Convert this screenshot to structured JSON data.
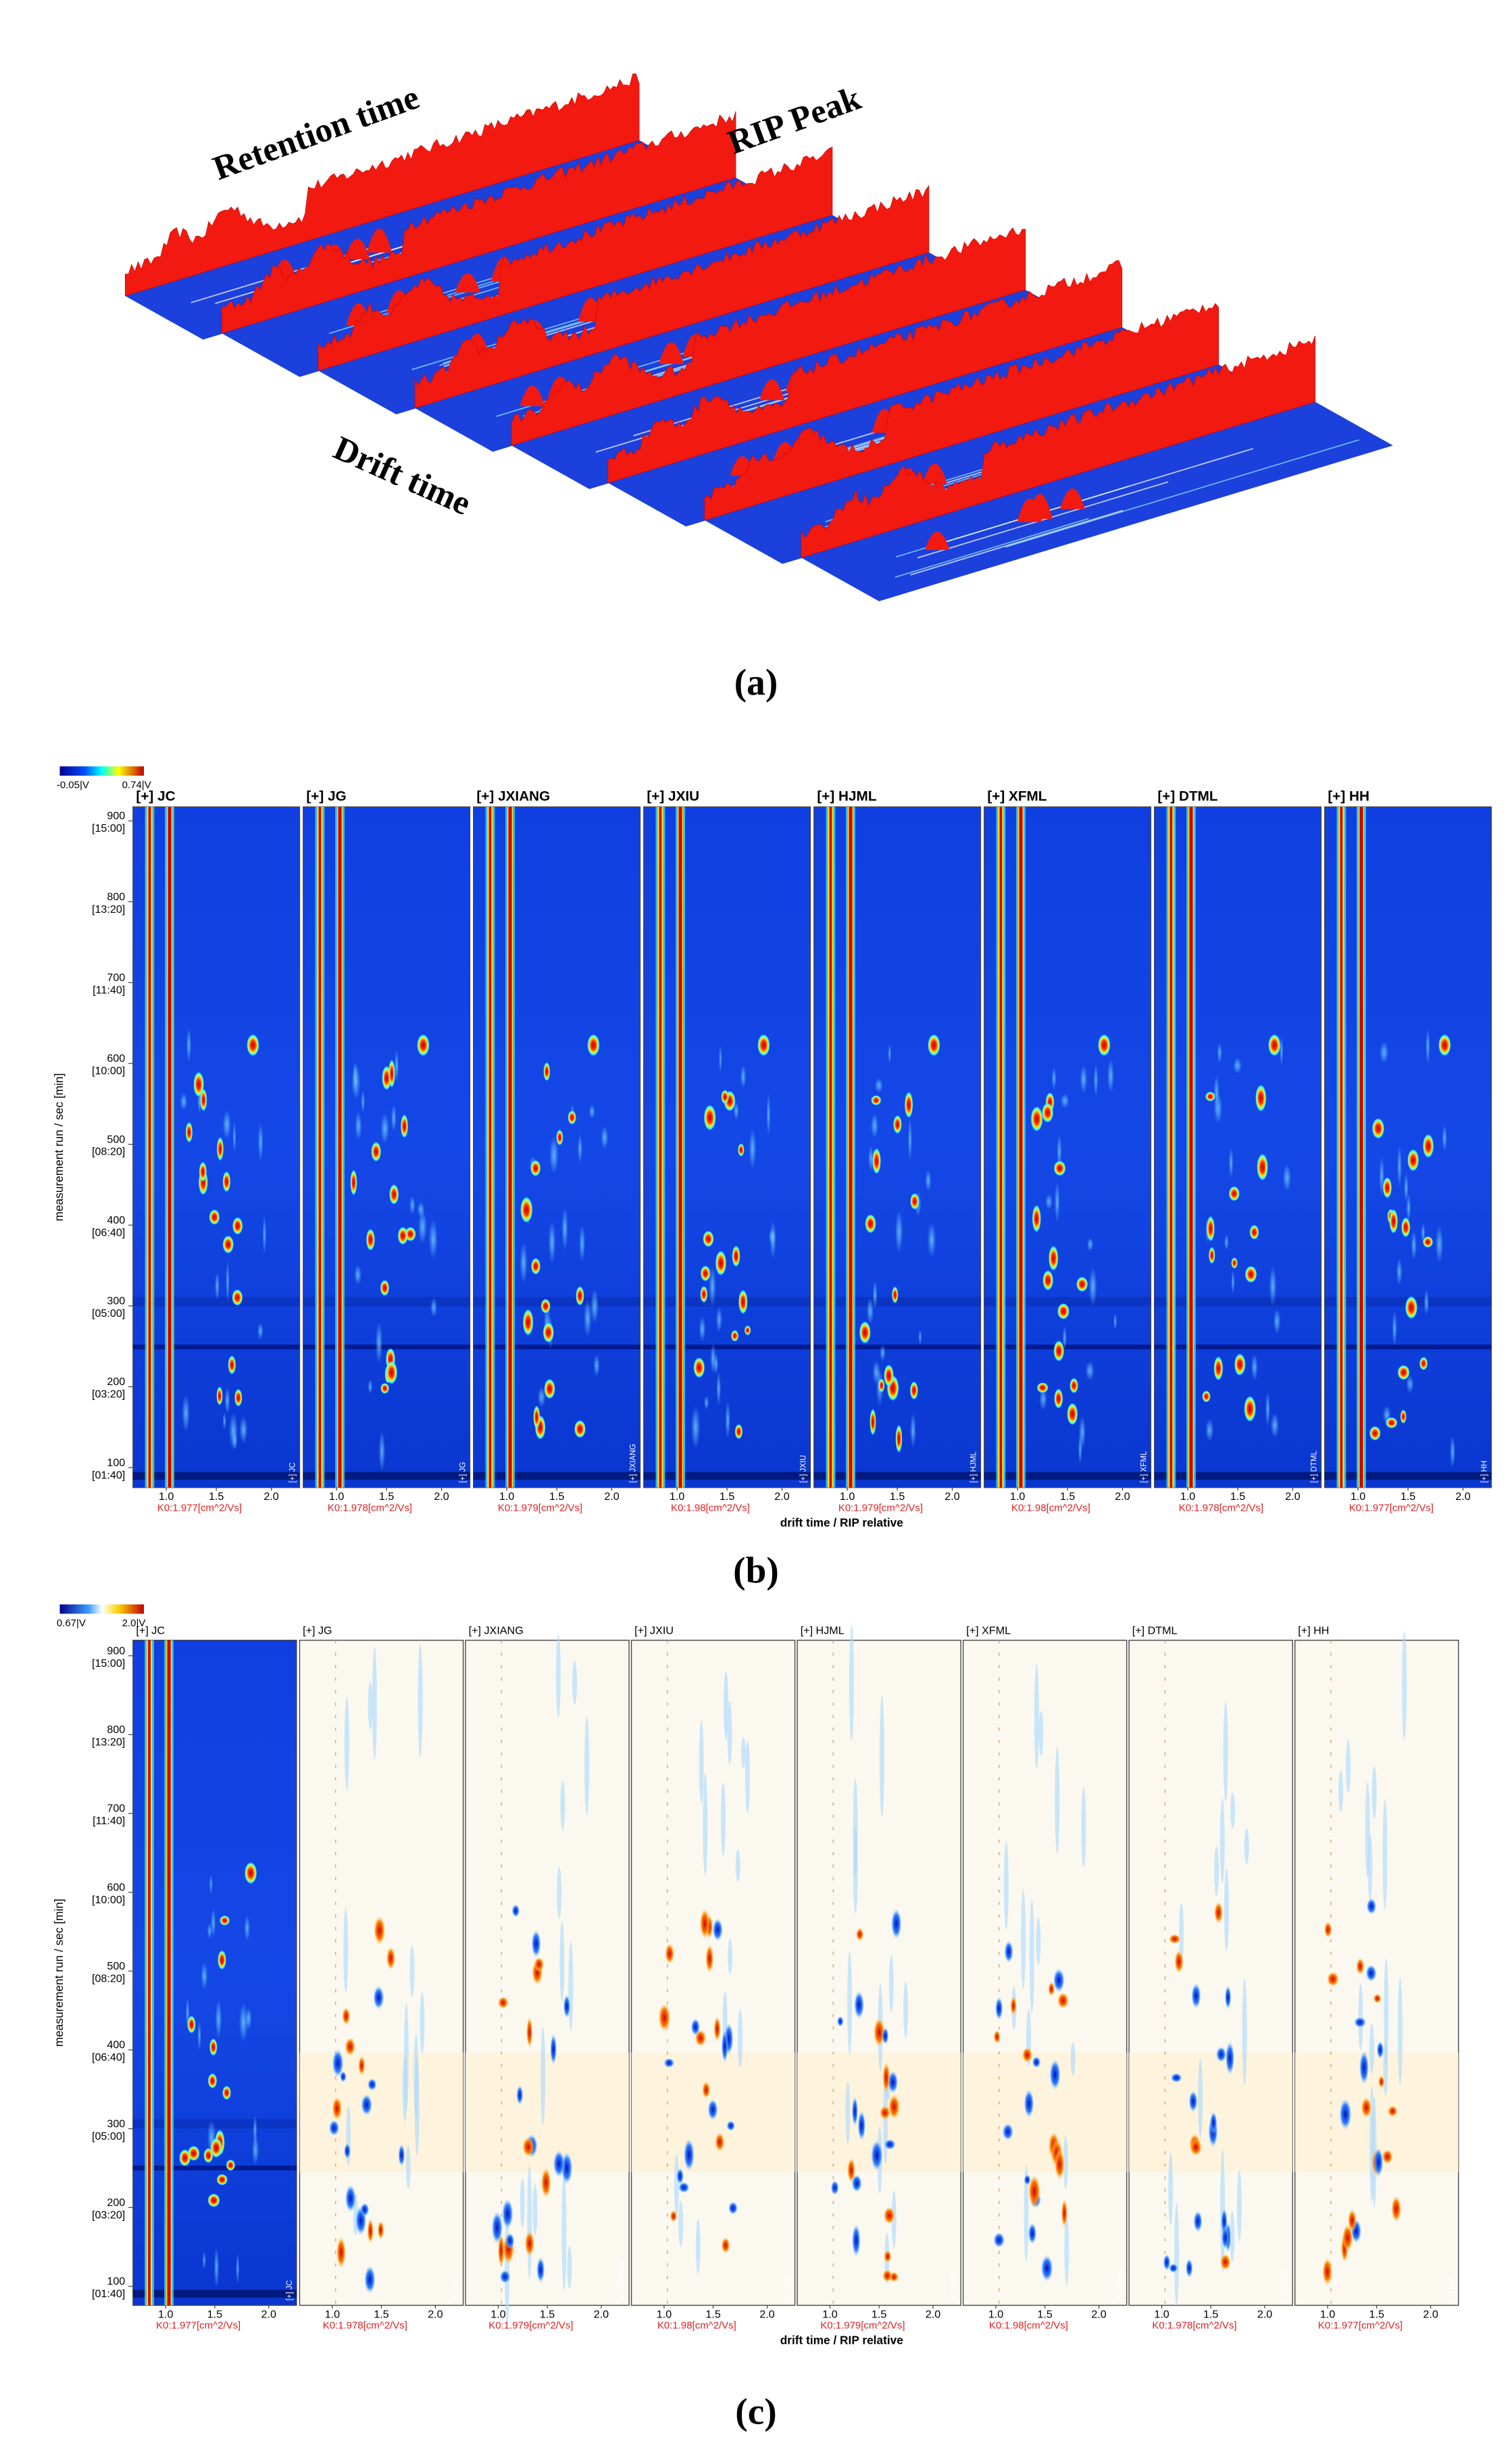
{
  "panel_a": {
    "labels": [
      "Retention time",
      "RIP Peak",
      "Drift time"
    ],
    "caption": "(a)"
  },
  "panel_b": {
    "colorbar_labels": [
      "-0.05|V",
      "0.74|V"
    ],
    "samples": [
      "[+] JC",
      "[+] JG",
      "[+] JXIANG",
      "[+] JXIU",
      "[+] HJML",
      "[+] XFML",
      "[+] DTML",
      "[+] HH"
    ],
    "y_axis_label": "measurement run / sec [min]",
    "y_ticks": [
      {
        "value": "900",
        "time": "[15:00]"
      },
      {
        "value": "800",
        "time": "[13:20]"
      },
      {
        "value": "700",
        "time": "[11:40]"
      },
      {
        "value": "600",
        "time": "[10:00]"
      },
      {
        "value": "500",
        "time": "[08:20]"
      },
      {
        "value": "400",
        "time": "[06:40]"
      },
      {
        "value": "300",
        "time": "[05:00]"
      },
      {
        "value": "200",
        "time": "[03:20]"
      },
      {
        "value": "100",
        "time": "[01:40]"
      }
    ],
    "x_ticks": [
      "1.0",
      "1.5",
      "2.0"
    ],
    "k0_labels": [
      "K0:1.977[cm^2/Vs]",
      "K0:1.978[cm^2/Vs]",
      "K0:1.979[cm^2/Vs]",
      "K0:1.98[cm^2/Vs]",
      "K0:1.979[cm^2/Vs]",
      "K0:1.98[cm^2/Vs]",
      "K0:1.978[cm^2/Vs]",
      "K0:1.977[cm^2/Vs]"
    ],
    "x_axis_label": "drift time / RIP relative",
    "caption": "(b)"
  },
  "panel_c": {
    "colorbar_labels": [
      "0.67|V",
      "2.0|V"
    ],
    "samples": [
      "[+] JC",
      "[+] JG",
      "[+] JXIANG",
      "[+] JXIU",
      "[+] HJML",
      "[+] XFML",
      "[+] DTML",
      "[+] HH"
    ],
    "y_axis_label": "measurement run / sec [min]",
    "y_ticks": [
      {
        "value": "900",
        "time": "[15:00]"
      },
      {
        "value": "800",
        "time": "[13:20]"
      },
      {
        "value": "700",
        "time": "[11:40]"
      },
      {
        "value": "600",
        "time": "[10:00]"
      },
      {
        "value": "500",
        "time": "[08:20]"
      },
      {
        "value": "400",
        "time": "[06:40]"
      },
      {
        "value": "300",
        "time": "[05:00]"
      },
      {
        "value": "200",
        "time": "[03:20]"
      },
      {
        "value": "100",
        "time": "[01:40]"
      }
    ],
    "x_ticks": [
      "1.0",
      "1.5",
      "2.0"
    ],
    "k0_labels": [
      "K0:1.977[cm^2/Vs]",
      "K0:1.978[cm^2/Vs]",
      "K0:1.979[cm^2/Vs]",
      "K0:1.98[cm^2/Vs]",
      "K0:1.979[cm^2/Vs]",
      "K0:1.98[cm^2/Vs]",
      "K0:1.978[cm^2/Vs]",
      "K0:1.977[cm^2/Vs]"
    ],
    "x_axis_label": "drift time / RIP relative",
    "caption": "(c)"
  }
}
